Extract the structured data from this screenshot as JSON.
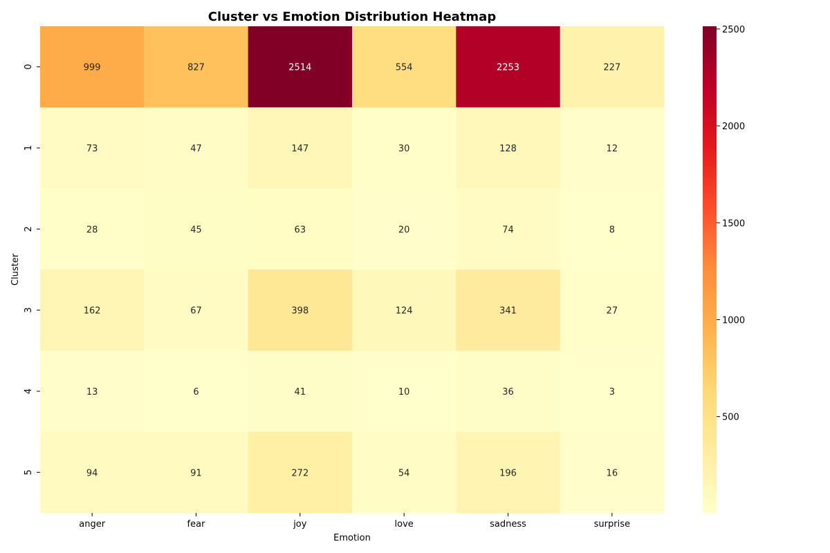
{
  "chart_data": {
    "type": "heatmap",
    "title": "Cluster vs Emotion Distribution Heatmap",
    "xlabel": "Emotion",
    "ylabel": "Cluster",
    "x_categories": [
      "anger",
      "fear",
      "joy",
      "love",
      "sadness",
      "surprise"
    ],
    "y_categories": [
      "0",
      "1",
      "2",
      "3",
      "4",
      "5"
    ],
    "values": [
      [
        999,
        827,
        2514,
        554,
        2253,
        227
      ],
      [
        73,
        47,
        147,
        30,
        128,
        12
      ],
      [
        28,
        45,
        63,
        20,
        74,
        8
      ],
      [
        162,
        67,
        398,
        124,
        341,
        27
      ],
      [
        13,
        6,
        41,
        10,
        36,
        3
      ],
      [
        94,
        91,
        272,
        54,
        196,
        16
      ]
    ],
    "colormap": "YlOrRd",
    "value_range": [
      3,
      2514
    ],
    "colorbar_ticks": [
      500,
      1000,
      1500,
      2000,
      2500
    ],
    "colorbar_tick_labels": [
      "500",
      "1000",
      "1500",
      "2000",
      "2500"
    ],
    "annotations": true,
    "grid": false,
    "legend": "colorbar-right"
  }
}
